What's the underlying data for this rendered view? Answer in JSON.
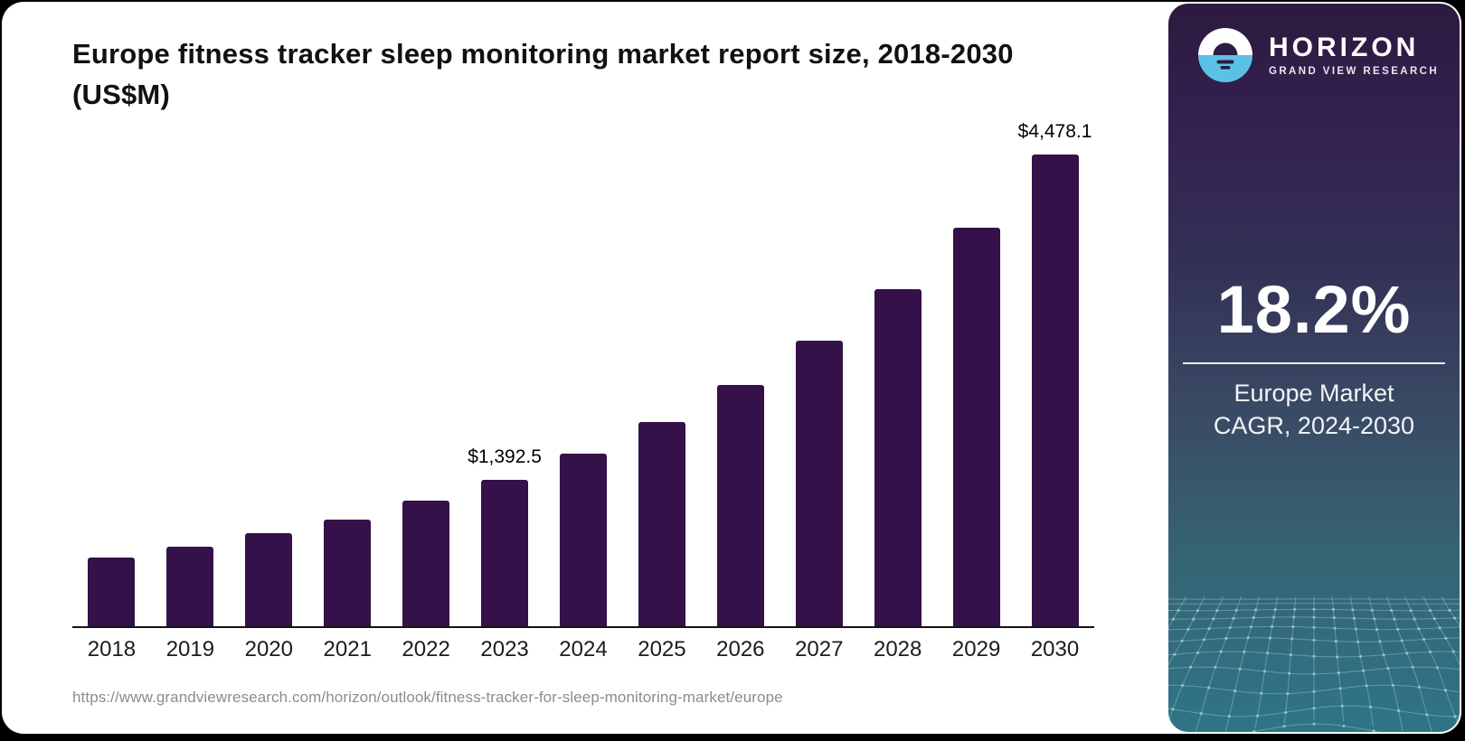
{
  "chart": {
    "title": "Europe fitness tracker sleep monitoring market report size, 2018-2030 (US$M)",
    "source_url": "https://www.grandviewresearch.com/horizon/outlook/fitness-tracker-for-sleep-monitoring-market/europe"
  },
  "chart_data": {
    "type": "bar",
    "title": "Europe fitness tracker sleep monitoring market report size, 2018-2030 (US$M)",
    "categories": [
      "2018",
      "2019",
      "2020",
      "2021",
      "2022",
      "2023",
      "2024",
      "2025",
      "2026",
      "2027",
      "2028",
      "2029",
      "2030"
    ],
    "values": [
      650,
      755,
      885,
      1015,
      1195,
      1392.5,
      1641,
      1940,
      2293,
      2710,
      3204,
      3787,
      4478.1
    ],
    "point_labels": [
      "",
      "",
      "",
      "",
      "",
      "$1,392.5",
      "",
      "",
      "",
      "",
      "",
      "",
      "$4,478.1"
    ],
    "xlabel": "",
    "ylabel": "US$M",
    "ylim": [
      0,
      4800
    ],
    "grid": false,
    "legend": "none",
    "bar_color": "#341148"
  },
  "sidebar": {
    "brand": {
      "name": "HORIZON",
      "subtitle": "GRAND VIEW RESEARCH"
    },
    "stat": {
      "value": "18.2%",
      "label_line1": "Europe Market",
      "label_line2": "CAGR, 2024-2030"
    },
    "colors": {
      "panel_top": "#2c1a3e",
      "panel_bottom": "#2f7587",
      "logo_blue": "#5bc2e7",
      "logo_dark": "#2e1d42"
    }
  }
}
